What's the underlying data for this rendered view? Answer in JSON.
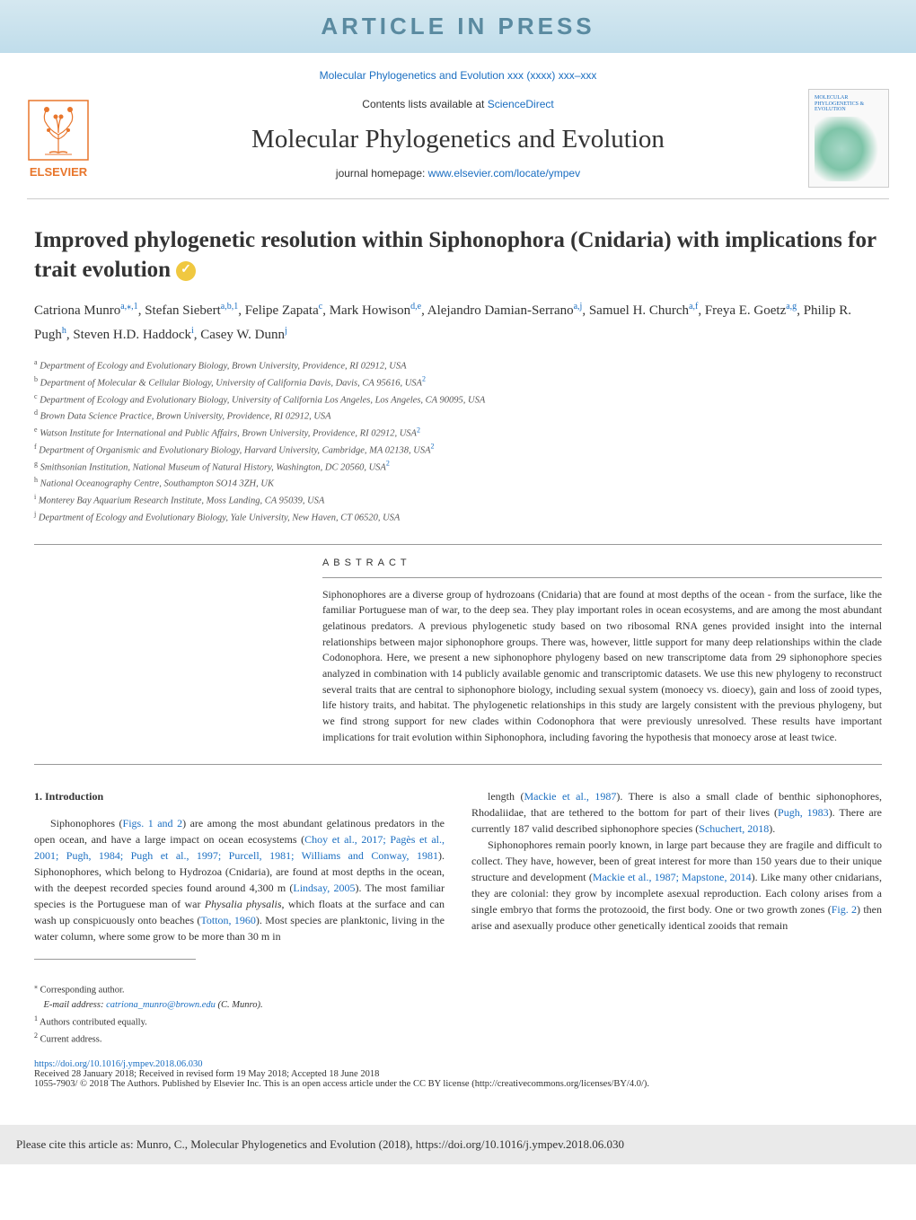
{
  "banner": {
    "text": "ARTICLE IN PRESS"
  },
  "journal_link": "Molecular Phylogenetics and Evolution xxx (xxxx) xxx–xxx",
  "header": {
    "contents_prefix": "Contents lists available at ",
    "contents_link": "ScienceDirect",
    "journal_title": "Molecular Phylogenetics and Evolution",
    "homepage_prefix": "journal homepage: ",
    "homepage_link": "www.elsevier.com/locate/ympev",
    "logo_text": "ELSEVIER",
    "cover_title": "MOLECULAR PHYLOGENETICS & EVOLUTION"
  },
  "article": {
    "title": "Improved phylogenetic resolution within Siphonophora (Cnidaria) with implications for trait evolution",
    "authors_html": "Catriona Munro<span class='sup'>a,⁎,1</span>, Stefan Siebert<span class='sup'>a,b,1</span>, Felipe Zapata<span class='sup'>c</span>, Mark Howison<span class='sup'>d,e</span>, Alejandro Damian-Serrano<span class='sup'>a,j</span>, Samuel H. Church<span class='sup'>a,f</span>, Freya E. Goetz<span class='sup'>a,g</span>, Philip R. Pugh<span class='sup'>h</span>, Steven H.D. Haddock<span class='sup'>i</span>, Casey W. Dunn<span class='sup'>j</span>"
  },
  "affiliations": [
    {
      "sup": "a",
      "text": "Department of Ecology and Evolutionary Biology, Brown University, Providence, RI 02912, USA",
      "link": ""
    },
    {
      "sup": "b",
      "text": "Department of Molecular & Cellular Biology, University of California Davis, Davis, CA 95616, USA",
      "link": "2"
    },
    {
      "sup": "c",
      "text": "Department of Ecology and Evolutionary Biology, University of California Los Angeles, Los Angeles, CA 90095, USA",
      "link": ""
    },
    {
      "sup": "d",
      "text": "Brown Data Science Practice, Brown University, Providence, RI 02912, USA",
      "link": ""
    },
    {
      "sup": "e",
      "text": "Watson Institute for International and Public Affairs, Brown University, Providence, RI 02912, USA",
      "link": "2"
    },
    {
      "sup": "f",
      "text": "Department of Organismic and Evolutionary Biology, Harvard University, Cambridge, MA 02138, USA",
      "link": "2"
    },
    {
      "sup": "g",
      "text": "Smithsonian Institution, National Museum of Natural History, Washington, DC 20560, USA",
      "link": "2"
    },
    {
      "sup": "h",
      "text": "National Oceanography Centre, Southampton SO14 3ZH, UK",
      "link": ""
    },
    {
      "sup": "i",
      "text": "Monterey Bay Aquarium Research Institute, Moss Landing, CA 95039, USA",
      "link": ""
    },
    {
      "sup": "j",
      "text": "Department of Ecology and Evolutionary Biology, Yale University, New Haven, CT 06520, USA",
      "link": ""
    }
  ],
  "abstract": {
    "label": "ABSTRACT",
    "text": "Siphonophores are a diverse group of hydrozoans (Cnidaria) that are found at most depths of the ocean - from the surface, like the familiar Portuguese man of war, to the deep sea. They play important roles in ocean ecosystems, and are among the most abundant gelatinous predators. A previous phylogenetic study based on two ribosomal RNA genes provided insight into the internal relationships between major siphonophore groups. There was, however, little support for many deep relationships within the clade Codonophora. Here, we present a new siphonophore phylogeny based on new transcriptome data from 29 siphonophore species analyzed in combination with 14 publicly available genomic and transcriptomic datasets. We use this new phylogeny to reconstruct several traits that are central to siphonophore biology, including sexual system (monoecy vs. dioecy), gain and loss of zooid types, life history traits, and habitat. The phylogenetic relationships in this study are largely consistent with the previous phylogeny, but we find strong support for new clades within Codonophora that were previously unresolved. These results have important implications for trait evolution within Siphonophora, including favoring the hypothesis that monoecy arose at least twice."
  },
  "intro": {
    "heading": "1. Introduction",
    "col1": "Siphonophores (<a href='#'>Figs. 1 and 2</a>) are among the most abundant gelatinous predators in the open ocean, and have a large impact on ocean ecosystems (<a href='#'>Choy et al., 2017; Pagès et al., 2001; Pugh, 1984; Pugh et al., 1997; Purcell, 1981; Williams and Conway, 1981</a>). Siphonophores, which belong to Hydrozoa (Cnidaria), are found at most depths in the ocean, with the deepest recorded species found around 4,300 m (<a href='#'>Lindsay, 2005</a>). The most familiar species is the Portuguese man of war <em>Physalia physalis</em>, which floats at the surface and can wash up conspicuously onto beaches (<a href='#'>Totton, 1960</a>). Most species are planktonic, living in the water column, where some grow to be more than 30 m in",
    "col2": "length (<a href='#'>Mackie et al., 1987</a>). There is also a small clade of benthic siphonophores, Rhodaliidae, that are tethered to the bottom for part of their lives (<a href='#'>Pugh, 1983</a>). There are currently 187 valid described siphonophore species (<a href='#'>Schuchert, 2018</a>).</p><p>Siphonophores remain poorly known, in large part because they are fragile and difficult to collect. They have, however, been of great interest for more than 150 years due to their unique structure and development (<a href='#'>Mackie et al., 1987; Mapstone, 2014</a>). Like many other cnidarians, they are colonial: they grow by incomplete asexual reproduction. Each colony arises from a single embryo that forms the protozooid, the first body. One or two growth zones (<a href='#'>Fig. 2</a>) then arise and asexually produce other genetically identical zooids that remain"
  },
  "footnotes": {
    "corr": "Corresponding author.",
    "email_label": "E-mail address: ",
    "email": "catriona_munro@brown.edu",
    "email_suffix": " (C. Munro).",
    "equal": "Authors contributed equally.",
    "current": "Current address."
  },
  "doi": {
    "url": "https://doi.org/10.1016/j.ympev.2018.06.030",
    "dates": "Received 28 January 2018; Received in revised form 19 May 2018; Accepted 18 June 2018",
    "license": "1055-7903/ © 2018 The Authors. Published by Elsevier Inc. This is an open access article under the CC BY license (http://creativecommons.org/licenses/BY/4.0/)."
  },
  "cite": "Please cite this article as: Munro, C., Molecular Phylogenetics and Evolution (2018), https://doi.org/10.1016/j.ympev.2018.06.030"
}
